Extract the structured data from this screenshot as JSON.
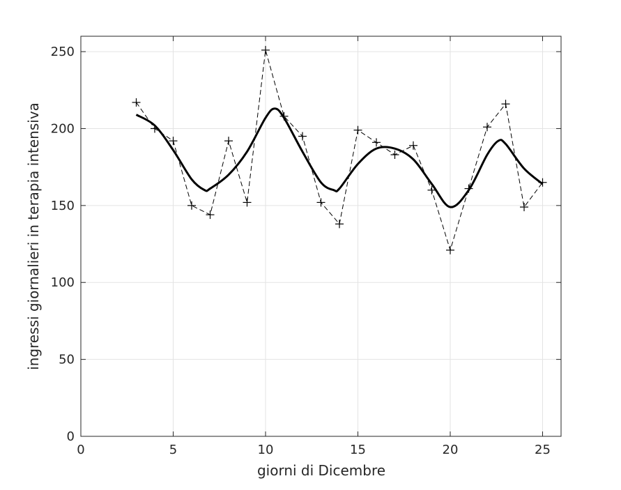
{
  "chart_data": {
    "type": "line",
    "title": "",
    "xlabel": "giorni di Dicembre",
    "ylabel": "ingressi giornalieri in terapia intensiva",
    "xlim": [
      0,
      26
    ],
    "ylim": [
      0,
      260
    ],
    "xticks": [
      0,
      5,
      10,
      15,
      20,
      25
    ],
    "yticks": [
      0,
      50,
      100,
      150,
      200,
      250
    ],
    "grid": true,
    "legend": "none",
    "series": [
      {
        "style": "dashed-with-plus-markers",
        "color": "#000000",
        "x": [
          3,
          4,
          5,
          6,
          7,
          8,
          9,
          10,
          11,
          12,
          13,
          14,
          15,
          16,
          17,
          18,
          19,
          20,
          21,
          22,
          23,
          24,
          25
        ],
        "y": [
          217,
          200,
          192,
          150,
          144,
          192,
          152,
          251,
          208,
          195,
          152,
          138,
          199,
          191,
          183,
          189,
          160,
          121,
          161,
          201,
          216,
          149,
          165
        ]
      },
      {
        "style": "solid-thick",
        "color": "#000000",
        "x": [
          3,
          4,
          5,
          6,
          6.7,
          7,
          8,
          9,
          10,
          10.5,
          11,
          12,
          13,
          13.7,
          14,
          15,
          16,
          17,
          18,
          19,
          20,
          21,
          22,
          22.6,
          23,
          24,
          25
        ],
        "y": [
          209,
          202,
          186,
          167,
          160,
          161,
          170,
          185,
          207,
          213,
          207,
          185,
          165,
          160,
          161,
          177,
          187,
          187,
          180,
          164,
          149,
          160,
          183,
          192,
          190,
          174,
          164
        ]
      }
    ]
  }
}
